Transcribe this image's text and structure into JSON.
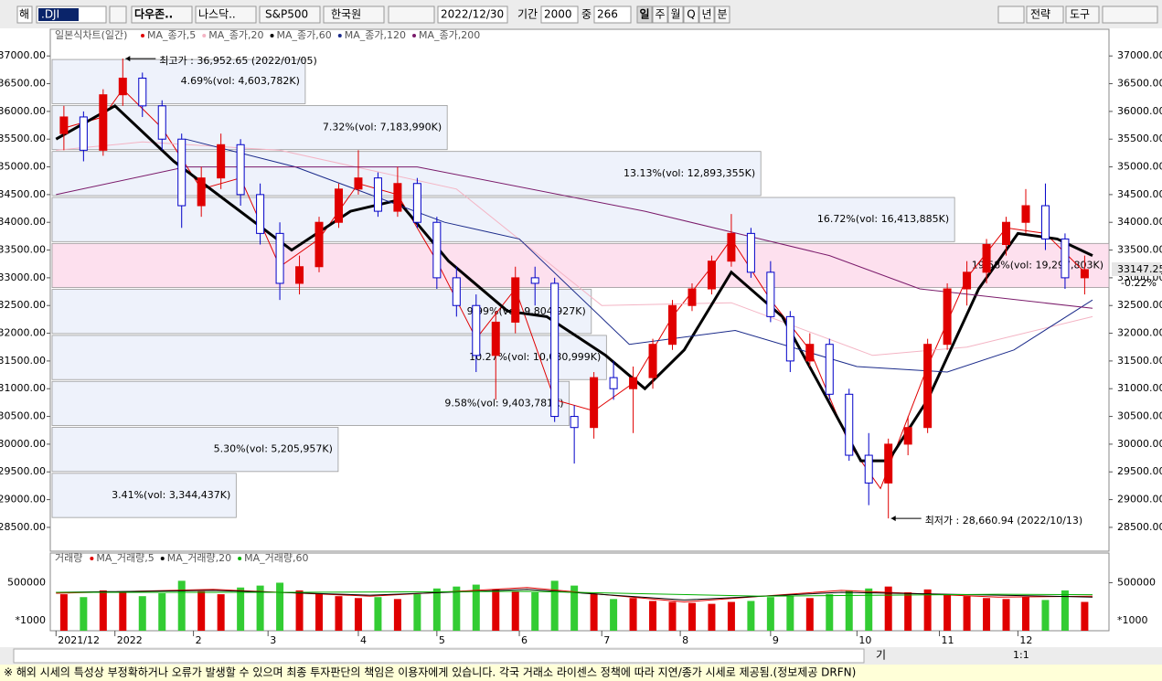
{
  "toolbar": {
    "market": "해",
    "symbol": ".DJI",
    "index1": "다우존..",
    "index2": "나스닥..",
    "index3": "S&P500",
    "currency": "한국원",
    "date": "2022/12/30",
    "period_label": "기간",
    "period": "2000",
    "mid_label": "중",
    "count": "266",
    "intervals": [
      "일",
      "주",
      "월",
      "Q",
      "년",
      "분"
    ],
    "strategy": "전략",
    "tools": "도구"
  },
  "chart_data": {
    "type": "candlestick",
    "header": "일본식차트(일간)",
    "x": [
      2,
      7,
      12,
      17,
      22,
      27,
      32,
      37,
      42,
      47,
      52,
      57,
      62,
      67,
      72,
      77,
      82,
      87,
      92,
      97,
      102,
      107,
      112,
      117,
      122,
      127,
      132,
      137,
      142,
      147,
      152,
      157,
      162,
      167,
      172,
      177,
      182,
      187,
      192,
      197,
      202,
      207,
      212,
      217,
      222,
      227,
      232,
      237,
      242,
      247,
      252,
      257,
      262
    ],
    "ohlc": [
      [
        35600,
        36100,
        35300,
        35900
      ],
      [
        35900,
        36000,
        35100,
        35300
      ],
      [
        35300,
        36400,
        35200,
        36300
      ],
      [
        36300,
        36952.65,
        36100,
        36600
      ],
      [
        36600,
        36700,
        35900,
        36100
      ],
      [
        36100,
        36200,
        35300,
        35500
      ],
      [
        35500,
        35600,
        33900,
        34300
      ],
      [
        34300,
        35000,
        34100,
        34800
      ],
      [
        34800,
        35600,
        34600,
        35400
      ],
      [
        35400,
        35500,
        34300,
        34500
      ],
      [
        34500,
        34700,
        33600,
        33800
      ],
      [
        33800,
        34000,
        32600,
        32900
      ],
      [
        32900,
        33400,
        32700,
        33200
      ],
      [
        33200,
        34100,
        33100,
        34000
      ],
      [
        34000,
        34700,
        33900,
        34600
      ],
      [
        34600,
        35300,
        34500,
        34800
      ],
      [
        34800,
        34900,
        34100,
        34200
      ],
      [
        34200,
        35000,
        34100,
        34700
      ],
      [
        34700,
        34800,
        33900,
        34000
      ],
      [
        34000,
        34100,
        32800,
        33000
      ],
      [
        33000,
        33200,
        32300,
        32500
      ],
      [
        32500,
        32700,
        31300,
        31600
      ],
      [
        31600,
        32400,
        30800,
        32200
      ],
      [
        32200,
        33200,
        32000,
        33000
      ],
      [
        33000,
        33200,
        32500,
        32900
      ],
      [
        32900,
        33000,
        30400,
        30500
      ],
      [
        30500,
        30700,
        29650,
        30300
      ],
      [
        30300,
        31300,
        30100,
        31200
      ],
      [
        31200,
        31500,
        30800,
        31000
      ],
      [
        31000,
        31400,
        30200,
        31200
      ],
      [
        31200,
        31900,
        31000,
        31800
      ],
      [
        31800,
        32600,
        31700,
        32500
      ],
      [
        32500,
        32900,
        32400,
        32800
      ],
      [
        32800,
        33400,
        32700,
        33300
      ],
      [
        33300,
        34150,
        33200,
        33800
      ],
      [
        33800,
        33900,
        33000,
        33100
      ],
      [
        33100,
        33300,
        32200,
        32300
      ],
      [
        32300,
        32400,
        31300,
        31500
      ],
      [
        31500,
        32000,
        31400,
        31800
      ],
      [
        31800,
        31900,
        30800,
        30900
      ],
      [
        30900,
        31000,
        29700,
        29800
      ],
      [
        29800,
        30200,
        28900,
        29300
      ],
      [
        29300,
        30100,
        28660.94,
        30000
      ],
      [
        30000,
        30500,
        29800,
        30300
      ],
      [
        30300,
        31900,
        30200,
        31800
      ],
      [
        31800,
        32900,
        31700,
        32800
      ],
      [
        32800,
        33300,
        32500,
        33100
      ],
      [
        33100,
        33700,
        32900,
        33600
      ],
      [
        33600,
        34100,
        33400,
        34000
      ],
      [
        34000,
        34600,
        33800,
        34300
      ],
      [
        34300,
        34700,
        33500,
        33700
      ],
      [
        33700,
        33800,
        32800,
        33000
      ],
      [
        33000,
        33400,
        32700,
        33147.25
      ]
    ],
    "up_color": "#e00000",
    "down_color": "#0000c8",
    "xlim": [
      -1,
      264
    ],
    "xticks": [
      {
        "value": 0,
        "label": "2021/12"
      },
      {
        "value": 15,
        "label": "2022"
      },
      {
        "value": 35,
        "label": "2"
      },
      {
        "value": 54,
        "label": "3"
      },
      {
        "value": 77,
        "label": "4"
      },
      {
        "value": 97,
        "label": "5"
      },
      {
        "value": 118,
        "label": "6"
      },
      {
        "value": 139,
        "label": "7"
      },
      {
        "value": 159,
        "label": "8"
      },
      {
        "value": 182,
        "label": "9"
      },
      {
        "value": 204,
        "label": "10"
      },
      {
        "value": 225,
        "label": "11"
      },
      {
        "value": 245,
        "label": "12"
      }
    ],
    "ylim": [
      28070,
      37465
    ],
    "yticks": [
      {
        "value": 28500,
        "label": "28500.00"
      },
      {
        "value": 29000,
        "label": "29000.00"
      },
      {
        "value": 29500,
        "label": "29500.00"
      },
      {
        "value": 30000,
        "label": "30000.00"
      },
      {
        "value": 30500,
        "label": "30500.00"
      },
      {
        "value": 31000,
        "label": "31000.00"
      },
      {
        "value": 31500,
        "label": "31500.00"
      },
      {
        "value": 32000,
        "label": "32000.00"
      },
      {
        "value": 32500,
        "label": "32500.00"
      },
      {
        "value": 33000,
        "label": "33000.00"
      },
      {
        "value": 33500,
        "label": "33500.00"
      },
      {
        "value": 34000,
        "label": "34000.00"
      },
      {
        "value": 34500,
        "label": "34500.00"
      },
      {
        "value": 35000,
        "label": "35000.00"
      },
      {
        "value": 35500,
        "label": "35500.00"
      },
      {
        "value": 36000,
        "label": "36000.00"
      },
      {
        "value": 36500,
        "label": "36500.00"
      },
      {
        "value": 37000,
        "label": "37000.00"
      }
    ],
    "series": [
      {
        "name": "MA_종가,5",
        "color": "#e00000",
        "x": [
          2,
          12,
          17,
          27,
          37,
          47,
          57,
          67,
          77,
          87,
          97,
          107,
          117,
          127,
          137,
          147,
          157,
          167,
          172,
          182,
          192,
          202,
          210,
          222,
          232,
          242,
          252,
          262
        ],
        "values": [
          35700,
          35900,
          36400,
          35700,
          34600,
          34800,
          33200,
          33700,
          34700,
          34500,
          33300,
          31900,
          32800,
          30800,
          30600,
          31100,
          32300,
          33200,
          33700,
          32600,
          31700,
          30000,
          29200,
          31400,
          33000,
          33900,
          33800,
          33100
        ]
      },
      {
        "name": "MA_종가,20",
        "color": "#f4b4c4",
        "x": [
          0,
          22,
          57,
          102,
          139,
          172,
          208,
          232,
          264
        ],
        "values": [
          35300,
          35450,
          35300,
          34600,
          32500,
          32550,
          31600,
          31750,
          32300
        ]
      },
      {
        "name": "MA_종가,60",
        "color": "#000000",
        "x": [
          0,
          15,
          30,
          45,
          60,
          75,
          87,
          100,
          115,
          125,
          140,
          150,
          160,
          172,
          185,
          195,
          205,
          212,
          222,
          235,
          245,
          255,
          264
        ],
        "values": [
          35500,
          36100,
          35100,
          34300,
          33500,
          34200,
          34400,
          33300,
          32400,
          32300,
          31600,
          31000,
          31700,
          33100,
          32300,
          31000,
          29700,
          29700,
          30800,
          32800,
          33800,
          33700,
          33400
        ]
      },
      {
        "name": "MA_종가,120",
        "color": "#1a2a8a",
        "x": [
          33,
          61,
          99,
          118,
          146,
          173,
          204,
          227,
          244,
          264
        ],
        "values": [
          35500,
          35000,
          34000,
          33700,
          31800,
          32050,
          31400,
          31300,
          31700,
          32600
        ]
      },
      {
        "name": "MA_종가,200",
        "color": "#7a1a6a",
        "x": [
          0,
          33,
          92,
          150,
          197,
          220,
          264
        ],
        "values": [
          34500,
          35000,
          35000,
          34200,
          33400,
          32800,
          32450
        ]
      }
    ],
    "band_edges": [
      28660.94,
      29490.11,
      30319.28,
      31148.45,
      31977.62,
      32806.79,
      33635.96,
      34465.13,
      35294.3,
      36123.47,
      36952.65
    ],
    "bands": [
      3.41,
      5.3,
      9.58,
      10.27,
      9.99,
      19.58,
      16.72,
      13.13,
      7.32,
      4.69
    ],
    "band_labels": [
      "3.41%(vol: 3,344,437K)",
      "5.30%(vol: 5,205,957K)",
      "9.58%(vol: 9,403,781K)",
      "10.27%(vol: 10,080,999K)",
      "9.99%(vol: 9,804,927K)",
      "19.58%(vol: 19,297,803K)",
      "16.72%(vol: 16,413,885K)",
      "13.13%(vol: 12,893,355K)",
      "7.32%(vol: 7,183,990K)",
      "4.69%(vol: 4,603,782K)"
    ],
    "band_color": "#eef2fb",
    "band_highlight_color": "#fde0ee",
    "annotations": [
      {
        "text": "최고가 : 36,952.65 (2022/01/05)",
        "x": 17,
        "value": 36952.65,
        "color": "#e00000"
      },
      {
        "text": "최저가 : 28,660.94 (2022/10/13)",
        "x": 212,
        "value": 28660.94,
        "color": "#1a2a8a"
      }
    ],
    "last_label": "33147.25",
    "change_label": "-0.22%",
    "volume": {
      "title": "거래량",
      "unit_label": "*1000",
      "ylim": [
        0,
        790000
      ],
      "yticks": [
        500000
      ],
      "values": [
        380000,
        350000,
        420000,
        400000,
        360000,
        390000,
        520000,
        410000,
        380000,
        450000,
        470000,
        500000,
        420000,
        390000,
        360000,
        340000,
        350000,
        330000,
        380000,
        440000,
        460000,
        480000,
        430000,
        410000,
        400000,
        520000,
        470000,
        380000,
        330000,
        340000,
        310000,
        300000,
        290000,
        280000,
        300000,
        310000,
        350000,
        360000,
        340000,
        380000,
        420000,
        440000,
        460000,
        400000,
        430000,
        380000,
        360000,
        340000,
        330000,
        350000,
        320000,
        420000,
        300000
      ],
      "up_color": "#e00000",
      "down_color": "#33cc33",
      "series": [
        {
          "name": "MA_거래량,5",
          "color": "#e00000",
          "x": [
            0,
            40,
            80,
            120,
            160,
            200,
            240,
            264
          ],
          "values": [
            390000,
            430000,
            360000,
            450000,
            300000,
            420000,
            350000,
            360000
          ]
        },
        {
          "name": "MA_거래량,20",
          "color": "#000000",
          "x": [
            0,
            40,
            80,
            120,
            160,
            200,
            240,
            264
          ],
          "values": [
            400000,
            420000,
            370000,
            430000,
            320000,
            400000,
            370000,
            350000
          ]
        },
        {
          "name": "MA_거래량,60",
          "color": "#00b000",
          "x": [
            0,
            60,
            120,
            180,
            240,
            264
          ],
          "values": [
            400000,
            400000,
            410000,
            360000,
            380000,
            375000
          ]
        }
      ]
    }
  },
  "nav": {
    "mode": "기",
    "ratio": "1:1"
  },
  "status_bar": "※ 해외 시세의 특성상 부정확하거나 오류가 발생할 수 있으며 최종 투자판단의 책임은 이용자에게 있습니다. 각국 거래소 라이센스 정책에 따라 지연/종가 시세로 제공됨.(정보제공 DRFN)"
}
